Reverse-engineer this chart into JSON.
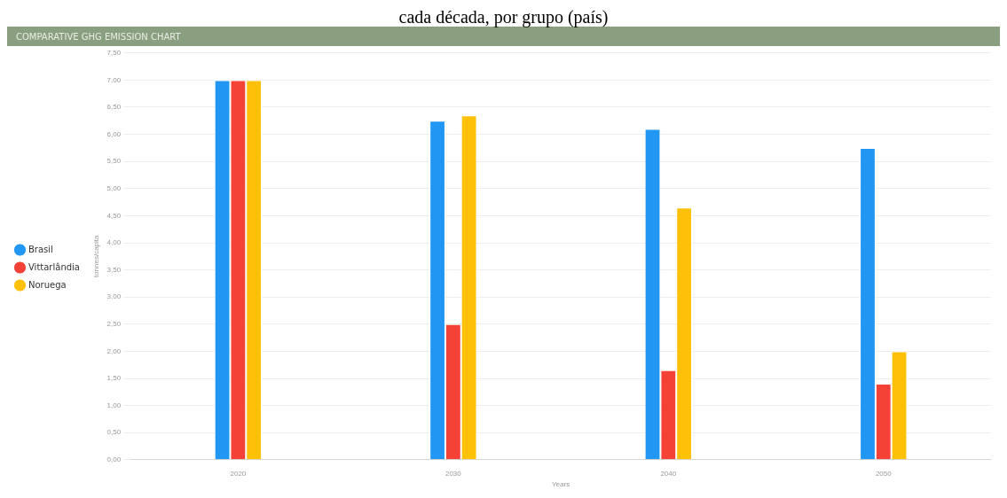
{
  "chart_data": {
    "type": "bar",
    "title": "COMPARATIVE GHG EMISSION CHART",
    "annotations": [
      "cada década, por grupo (país)"
    ],
    "xlabel": "Years",
    "ylabel": "tonnes/capita",
    "categories": [
      "2020",
      "2030",
      "2040",
      "2050"
    ],
    "series": [
      {
        "name": "Brasil",
        "color": "#2196f3",
        "values": [
          7.0,
          6.25,
          6.1,
          5.75
        ]
      },
      {
        "name": "Vittarlândia",
        "color": "#f44336",
        "values": [
          7.0,
          2.5,
          1.65,
          1.4
        ]
      },
      {
        "name": "Noruega",
        "color": "#ffc107",
        "values": [
          7.0,
          6.35,
          4.65,
          2.0
        ]
      }
    ],
    "ylim": [
      0,
      7.5
    ],
    "yticks": [
      {
        "value": 0,
        "label": "0,00"
      },
      {
        "value": 0.5,
        "label": "0,50"
      },
      {
        "value": 1,
        "label": "1,00"
      },
      {
        "value": 1.5,
        "label": "1,50"
      },
      {
        "value": 2,
        "label": "2,00"
      },
      {
        "value": 2.5,
        "label": "2,50"
      },
      {
        "value": 3,
        "label": "3,00"
      },
      {
        "value": 3.5,
        "label": "3,50"
      },
      {
        "value": 4,
        "label": "4,00"
      },
      {
        "value": 4.5,
        "label": "4,50"
      },
      {
        "value": 5,
        "label": "5,00"
      },
      {
        "value": 5.5,
        "label": "5,50"
      },
      {
        "value": 6,
        "label": "6,00"
      },
      {
        "value": 6.5,
        "label": "6,50"
      },
      {
        "value": 7,
        "label": "7,00"
      },
      {
        "value": 7.5,
        "label": "7,50"
      }
    ],
    "grid": "y",
    "legend": "left"
  }
}
